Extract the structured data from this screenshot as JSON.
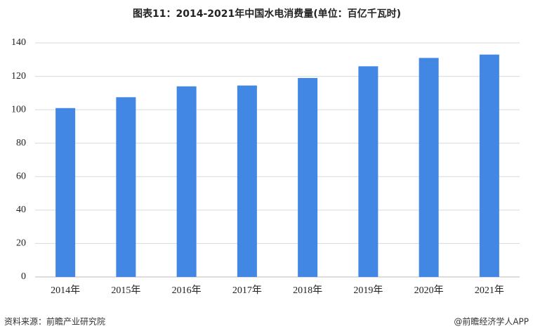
{
  "chart_data": {
    "type": "bar",
    "title": "图表11：2014-2021年中国水电消费量(单位：百亿千瓦时)",
    "categories": [
      "2014年",
      "2015年",
      "2016年",
      "2017年",
      "2018年",
      "2019年",
      "2020年",
      "2021年"
    ],
    "values": [
      101,
      107.5,
      114,
      114.5,
      119,
      126,
      131,
      133
    ],
    "color": "#4287e3",
    "ylim": [
      0,
      140
    ],
    "yticks": [
      0,
      20,
      40,
      60,
      80,
      100,
      120,
      140
    ],
    "grid": true,
    "source": "资料来源：前瞻产业研究院",
    "credit": "@前瞻经济学人APP"
  }
}
